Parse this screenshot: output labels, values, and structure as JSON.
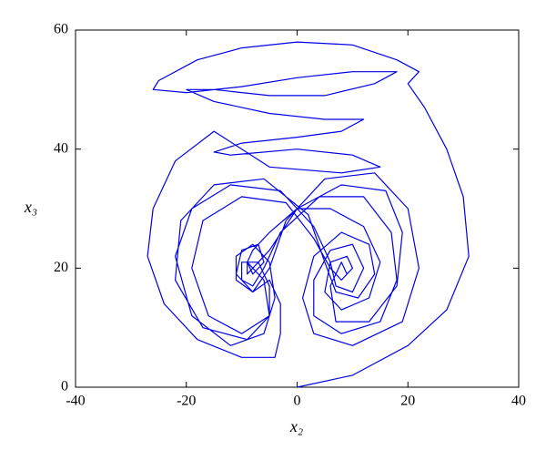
{
  "chart_data": {
    "type": "line",
    "xlabel": "x₂",
    "ylabel": "x₃",
    "xlim": [
      -40,
      40
    ],
    "xticks": [
      -40,
      -20,
      0,
      20,
      40
    ],
    "ylim": [
      0,
      60
    ],
    "yticks": [
      0,
      20,
      40,
      60
    ],
    "x": [
      0,
      10,
      20,
      27,
      31,
      30,
      27,
      23,
      20,
      22,
      18,
      10,
      0,
      -10,
      -18,
      -25,
      -26,
      -20,
      -10,
      0,
      10,
      18,
      14,
      5,
      -5,
      -15,
      -20,
      -15,
      -5,
      5,
      12,
      8,
      0,
      -10,
      -15,
      -12,
      0,
      10,
      15,
      8,
      -5,
      -15,
      -22,
      -26,
      -27,
      -24,
      -18,
      -10,
      -4,
      -3,
      -3,
      -5,
      -8,
      -11,
      -10,
      -7,
      -6,
      -8,
      -9,
      -8,
      -5,
      0,
      6,
      12,
      15,
      13,
      8,
      5,
      6,
      9,
      10,
      8,
      6,
      3,
      -2,
      -10,
      -17,
      -19,
      -16,
      -10,
      -5,
      -5,
      -7,
      -10,
      -10,
      -8,
      -6,
      -3,
      4,
      12,
      17,
      18,
      15,
      8,
      3,
      3,
      6,
      10,
      12,
      10,
      7,
      6,
      3,
      -3,
      -12,
      -19,
      -22,
      -19,
      -12,
      -6,
      -4,
      -5,
      -8,
      -11,
      -11,
      -8,
      -5,
      -2,
      5,
      14,
      20,
      22,
      19,
      10,
      3,
      1,
      3,
      8,
      13,
      14,
      11,
      7,
      5,
      2,
      -6,
      -15,
      -21,
      -22,
      -17,
      -9,
      -5,
      -6,
      -9,
      -9,
      -5,
      0,
      8,
      16,
      19,
      18,
      13,
      7,
      6,
      8,
      9
    ],
    "series": [
      {
        "color": "#0000e6",
        "values": [
          0,
          2,
          7,
          13,
          22,
          32,
          40,
          47,
          51,
          53,
          55,
          57.5,
          58,
          57,
          55,
          51.5,
          50,
          49.5,
          50.5,
          52,
          53,
          53,
          51,
          49,
          49,
          50,
          50,
          48,
          46,
          45,
          45,
          43,
          42,
          41,
          39.5,
          39,
          40,
          39,
          37,
          36,
          37,
          43,
          38,
          30,
          22,
          14,
          8,
          5,
          5,
          9,
          14,
          18,
          16,
          19,
          23,
          24,
          21,
          19,
          21,
          23,
          26,
          30,
          30,
          27,
          21,
          15,
          13,
          16,
          21,
          22,
          20,
          18,
          20,
          25,
          31,
          32,
          28,
          20,
          12,
          9,
          12,
          17,
          21,
          21,
          18,
          17,
          20,
          26,
          32,
          32,
          26,
          18,
          11,
          9,
          12,
          18,
          23,
          24,
          20,
          16,
          17,
          21,
          27,
          33,
          34,
          30,
          22,
          12,
          7,
          9,
          15,
          21,
          24,
          22,
          18,
          16,
          20,
          28,
          35,
          36,
          30,
          20,
          11,
          7,
          9,
          15,
          22,
          26,
          24,
          19,
          15,
          16,
          21,
          29,
          35,
          34,
          28,
          18,
          10,
          8,
          12,
          18,
          21,
          19,
          23,
          30,
          34,
          33,
          26,
          17,
          11,
          11,
          17,
          21,
          19
        ]
      }
    ]
  }
}
